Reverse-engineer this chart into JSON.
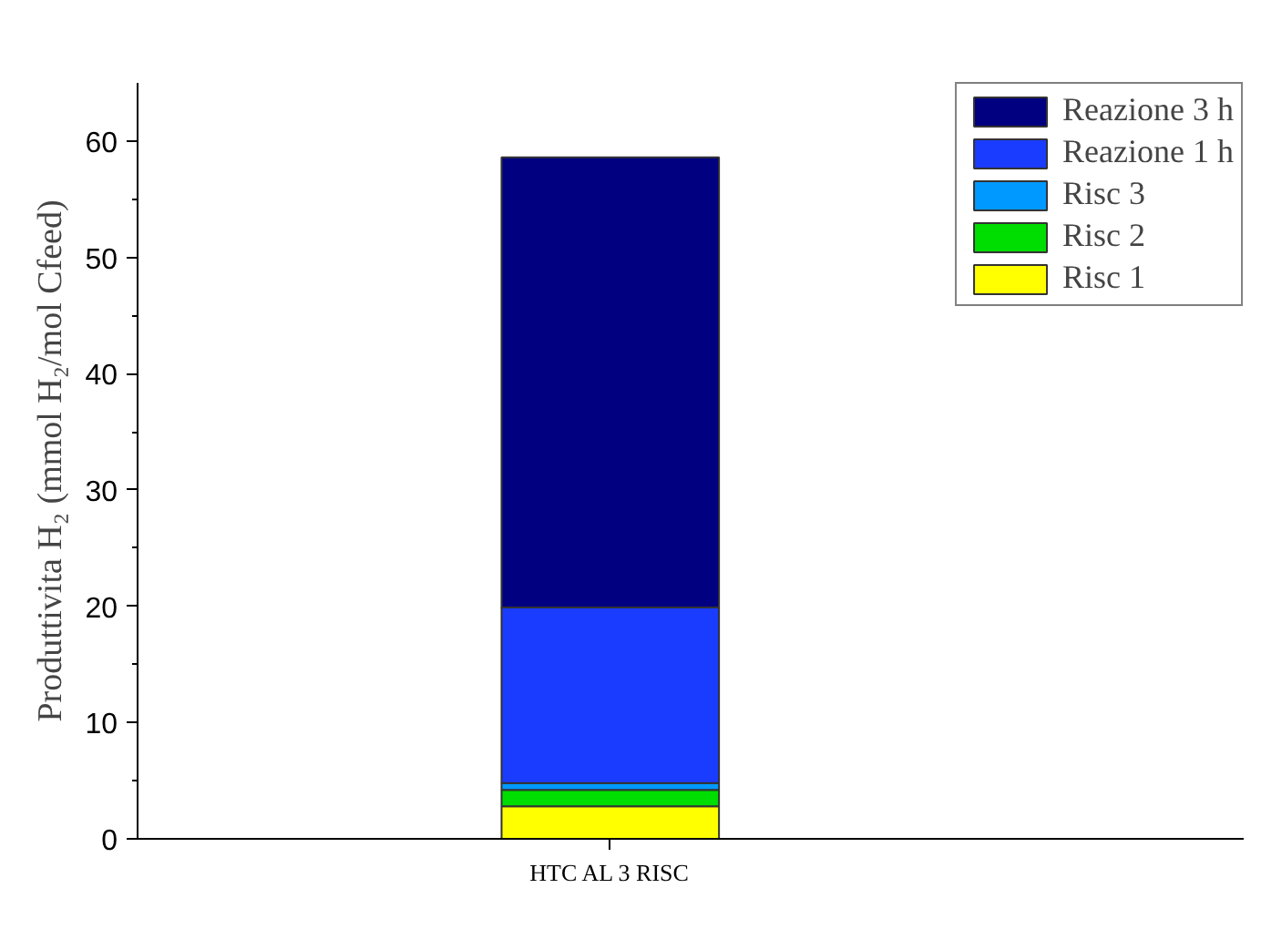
{
  "chart_data": {
    "type": "bar",
    "stacked": true,
    "ylabel": "Produttivita H₂ (mmol H₂/mol Cfeed)",
    "categories": [
      "HTC AL 3 RISC"
    ],
    "series": [
      {
        "name": "Risc 1",
        "color": "#ffff00",
        "values": [
          2.8
        ]
      },
      {
        "name": "Risc 2",
        "color": "#00dd00",
        "values": [
          1.4
        ]
      },
      {
        "name": "Risc 3",
        "color": "#0099ff",
        "values": [
          0.6
        ]
      },
      {
        "name": "Reazione 1 h",
        "color": "#1a3cff",
        "values": [
          15.1
        ]
      },
      {
        "name": "Reazione 3 h",
        "color": "#000080",
        "values": [
          38.7
        ]
      }
    ],
    "ylim": [
      0,
      65
    ],
    "yticks": [
      0,
      {
        "value": 5,
        "label": null
      },
      10,
      {
        "value": 15,
        "label": null
      },
      20,
      {
        "value": 25,
        "label": null
      },
      30,
      {
        "value": 35,
        "label": null
      },
      40,
      {
        "value": 45,
        "label": null
      },
      50,
      {
        "value": 55,
        "label": null
      },
      60
    ],
    "grid": false,
    "legend": "top right"
  }
}
